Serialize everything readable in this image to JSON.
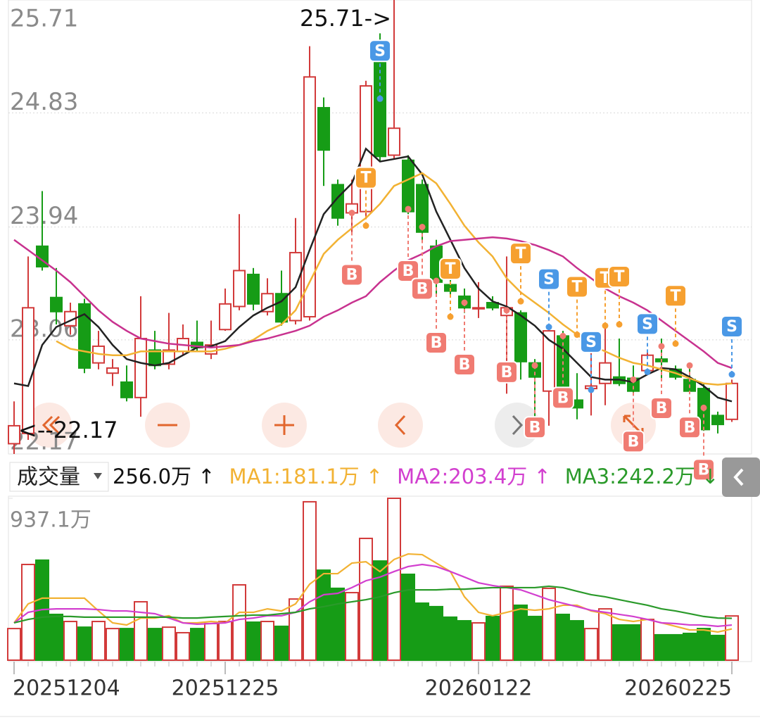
{
  "chart_data": [
    {
      "type": "candlestick",
      "ylim": [
        22.17,
        25.71
      ],
      "yticks": [
        25.71,
        24.83,
        23.94,
        23.06,
        22.17
      ],
      "categories": [
        "20251204",
        null,
        null,
        null,
        null,
        null,
        null,
        null,
        null,
        null,
        null,
        null,
        null,
        null,
        null,
        "20251225",
        null,
        null,
        null,
        null,
        null,
        null,
        null,
        null,
        null,
        null,
        null,
        null,
        null,
        null,
        null,
        null,
        null,
        "20260122",
        null,
        null,
        null,
        null,
        null,
        null,
        null,
        null,
        null,
        null,
        null,
        null,
        null,
        null,
        null,
        null,
        null,
        "20260225"
      ],
      "open": [
        22.25,
        22.33,
        23.79,
        23.39,
        23.17,
        23.34,
        22.88,
        22.8,
        22.73,
        22.61,
        22.98,
        22.87,
        22.97,
        23.04,
        22.95,
        23.14,
        23.32,
        23.57,
        23.28,
        23.42,
        23.21,
        23.24,
        24.87,
        24.27,
        24.05,
        24.06,
        25.29,
        24.5,
        24.46,
        24.27,
        23.79,
        23.49,
        23.4,
        23.31,
        23.35,
        23.25,
        23.27,
        22.88,
        22.66,
        23.09,
        22.59,
        22.68,
        22.72,
        22.77,
        22.76,
        22.82,
        22.91,
        22.83,
        22.75,
        22.68,
        22.47,
        22.44
      ],
      "high": [
        22.58,
        23.71,
        24.22,
        23.62,
        23.35,
        23.38,
        23.13,
        22.91,
        22.86,
        23.4,
        23.13,
        23.27,
        23.18,
        23.21,
        23.21,
        23.46,
        24.04,
        23.62,
        23.54,
        23.6,
        24.01,
        25.35,
        24.95,
        24.31,
        24.31,
        25.08,
        25.45,
        25.71,
        24.5,
        24.31,
        23.84,
        23.65,
        23.46,
        23.51,
        23.4,
        23.71,
        23.29,
        22.91,
        23.18,
        23.13,
        22.8,
        22.97,
        23.18,
        23.07,
        22.86,
        22.97,
        23.07,
        22.86,
        22.86,
        22.72,
        22.5,
        22.75
      ],
      "low": [
        22.17,
        22.28,
        23.6,
        23.18,
        23.1,
        22.8,
        22.83,
        22.7,
        22.58,
        22.46,
        22.83,
        22.83,
        22.94,
        22.97,
        22.91,
        23.13,
        23.29,
        23.29,
        23.25,
        23.17,
        23.18,
        23.21,
        24.26,
        23.95,
        23.9,
        24.01,
        24.45,
        24.47,
        24.04,
        23.84,
        23.4,
        23.4,
        23.27,
        23.23,
        23.29,
        22.64,
        22.75,
        22.42,
        22.39,
        22.62,
        22.44,
        22.47,
        22.55,
        22.7,
        22.64,
        22.8,
        22.75,
        22.75,
        22.64,
        22.35,
        22.33,
        22.42
      ],
      "close": [
        22.39,
        23.31,
        23.63,
        23.28,
        23.28,
        22.84,
        23.01,
        22.84,
        22.61,
        23.07,
        22.86,
        22.98,
        23.07,
        23.0,
        23.02,
        23.34,
        23.6,
        23.34,
        23.42,
        23.2,
        23.74,
        25.11,
        24.54,
        24.01,
        24.12,
        25.04,
        24.49,
        24.71,
        24.06,
        23.9,
        23.51,
        23.44,
        23.31,
        23.31,
        23.31,
        23.31,
        22.89,
        22.77,
        23.13,
        22.66,
        22.53,
        22.7,
        22.88,
        22.72,
        22.66,
        22.94,
        22.89,
        22.77,
        22.66,
        22.36,
        22.4,
        22.72
      ],
      "up_color": "#d23a3a",
      "down_color": "#169c16",
      "lines": [
        {
          "color": "#222222",
          "values": [
            22.72,
            22.7,
            23.02,
            23.16,
            23.21,
            23.26,
            23.16,
            23.02,
            22.91,
            22.88,
            22.86,
            22.88,
            22.94,
            23.0,
            23.01,
            23.05,
            23.16,
            23.25,
            23.31,
            23.36,
            23.47,
            23.76,
            24.04,
            24.17,
            24.28,
            24.55,
            24.45,
            24.47,
            24.49,
            24.35,
            24.06,
            23.84,
            23.62,
            23.46,
            23.36,
            23.32,
            23.25,
            23.17,
            23.06,
            22.99,
            22.88,
            22.77,
            22.75,
            22.75,
            22.73,
            22.79,
            22.84,
            22.83,
            22.77,
            22.7,
            22.61,
            22.58
          ]
        },
        {
          "color": "#f2b233",
          "values": [
            null,
            null,
            null,
            23.05,
            22.99,
            22.97,
            22.95,
            22.94,
            22.94,
            22.97,
            22.97,
            22.97,
            22.97,
            22.97,
            22.97,
            22.99,
            23.02,
            23.06,
            23.13,
            23.18,
            23.29,
            23.51,
            23.73,
            23.84,
            23.93,
            24.01,
            24.12,
            24.26,
            24.31,
            24.36,
            24.28,
            24.12,
            23.95,
            23.82,
            23.71,
            23.54,
            23.43,
            23.35,
            23.27,
            23.18,
            23.1,
            23.02,
            22.97,
            22.92,
            22.88,
            22.86,
            22.83,
            22.8,
            22.76,
            22.72,
            22.71,
            22.72
          ]
        },
        {
          "color": "#c8328f",
          "values": [
            23.84,
            23.76,
            23.68,
            23.6,
            23.51,
            23.4,
            23.29,
            23.2,
            23.13,
            23.07,
            23.05,
            23.03,
            23.02,
            23.01,
            23.0,
            23.01,
            23.02,
            23.05,
            23.07,
            23.1,
            23.13,
            23.17,
            23.24,
            23.29,
            23.35,
            23.4,
            23.51,
            23.6,
            23.68,
            23.73,
            23.79,
            23.83,
            23.84,
            23.85,
            23.86,
            23.85,
            23.83,
            23.8,
            23.76,
            23.71,
            23.62,
            23.54,
            23.46,
            23.4,
            23.35,
            23.29,
            23.21,
            23.13,
            23.05,
            22.97,
            22.88,
            22.84
          ]
        }
      ],
      "annotations": [
        "25.71->",
        "<--22.17"
      ],
      "signal_colors": {
        "B": "#f07b72",
        "S": "#4a98e6",
        "T": "#f6a030"
      },
      "signals": [
        {
          "label": "B",
          "bar": 24,
          "price": 24.05
        },
        {
          "label": "T",
          "bar": 25,
          "price": 23.95
        },
        {
          "label": "S",
          "bar": 26,
          "price": 24.94
        },
        {
          "label": "B",
          "bar": 28,
          "price": 24.08
        },
        {
          "label": "B",
          "bar": 29,
          "price": 23.94
        },
        {
          "label": "B",
          "bar": 30,
          "price": 23.52
        },
        {
          "label": "T",
          "bar": 31,
          "price": 23.24
        },
        {
          "label": "B",
          "bar": 32,
          "price": 23.35
        },
        {
          "label": "B",
          "bar": 35,
          "price": 23.29
        },
        {
          "label": "T",
          "bar": 36,
          "price": 23.36
        },
        {
          "label": "B",
          "bar": 37,
          "price": 22.86
        },
        {
          "label": "S",
          "bar": 38,
          "price": 23.16
        },
        {
          "label": "B",
          "bar": 39,
          "price": 23.09
        },
        {
          "label": "T",
          "bar": 40,
          "price": 23.1
        },
        {
          "label": "S",
          "bar": 41,
          "price": 22.67
        },
        {
          "label": "T",
          "bar": 42,
          "price": 23.17
        },
        {
          "label": "T",
          "bar": 43,
          "price": 23.18
        },
        {
          "label": "B",
          "bar": 44,
          "price": 22.75
        },
        {
          "label": "S",
          "bar": 45,
          "price": 22.81
        },
        {
          "label": "B",
          "bar": 46,
          "price": 23.01
        },
        {
          "label": "T",
          "bar": 47,
          "price": 23.03
        },
        {
          "label": "B",
          "bar": 48,
          "price": 22.86
        },
        {
          "label": "B",
          "bar": 49,
          "price": 22.53
        },
        {
          "label": "S",
          "bar": 51,
          "price": 22.79
        }
      ]
    },
    {
      "type": "volume",
      "title": "成交量",
      "header": [
        {
          "text": "256.0万 ↑",
          "color": "#111111"
        },
        {
          "text": "MA1:181.1万 ↑",
          "color": "#f2b233"
        },
        {
          "text": "MA2:203.4万 ↑",
          "color": "#d23fcf"
        },
        {
          "text": "MA3:242.2万 ↓",
          "color": "#2a9a2a"
        }
      ],
      "ylim": [
        0,
        937.1
      ],
      "yticks": [
        {
          "value": 937.1,
          "label": "937.1万"
        }
      ],
      "values": [
        183,
        554,
        579,
        265,
        224,
        191,
        224,
        183,
        183,
        338,
        183,
        191,
        159,
        183,
        212,
        224,
        436,
        220,
        224,
        196,
        354,
        917,
        521,
        416,
        391,
        705,
        574,
        937.1,
        497,
        330,
        310,
        249,
        228,
        216,
        253,
        428,
        318,
        253,
        416,
        265,
        228,
        183,
        297,
        204,
        204,
        236,
        147,
        147,
        155,
        183,
        143,
        256.0
      ],
      "lines": [
        {
          "color": "#f2b233",
          "values": [
            216,
            326,
            359,
            359,
            359,
            359,
            285,
            216,
            204,
            244,
            244,
            257,
            216,
            216,
            224,
            216,
            277,
            277,
            297,
            285,
            326,
            440,
            501,
            501,
            562,
            570,
            513,
            583,
            615,
            611,
            562,
            513,
            367,
            277,
            257,
            277,
            297,
            289,
            297,
            318,
            318,
            285,
            269,
            236,
            224,
            236,
            216,
            196,
            175,
            175,
            163,
            181.1
          ]
        },
        {
          "color": "#d23fcf",
          "values": [
            216,
            277,
            293,
            297,
            297,
            297,
            293,
            285,
            285,
            277,
            269,
            244,
            216,
            208,
            212,
            216,
            236,
            244,
            257,
            257,
            277,
            338,
            379,
            387,
            420,
            460,
            481,
            513,
            542,
            554,
            542,
            513,
            481,
            448,
            432,
            420,
            407,
            379,
            350,
            330,
            310,
            289,
            277,
            265,
            253,
            236,
            216,
            212,
            204,
            204,
            196,
            203.4
          ]
        },
        {
          "color": "#2a9a2a",
          "values": [
            216,
            236,
            249,
            253,
            253,
            249,
            249,
            249,
            249,
            249,
            249,
            249,
            244,
            244,
            249,
            253,
            257,
            261,
            261,
            269,
            277,
            297,
            310,
            326,
            338,
            350,
            367,
            391,
            407,
            407,
            407,
            411,
            411,
            416,
            420,
            420,
            420,
            420,
            428,
            420,
            399,
            379,
            367,
            350,
            334,
            318,
            297,
            285,
            269,
            253,
            244,
            242.2
          ]
        }
      ]
    }
  ]
}
